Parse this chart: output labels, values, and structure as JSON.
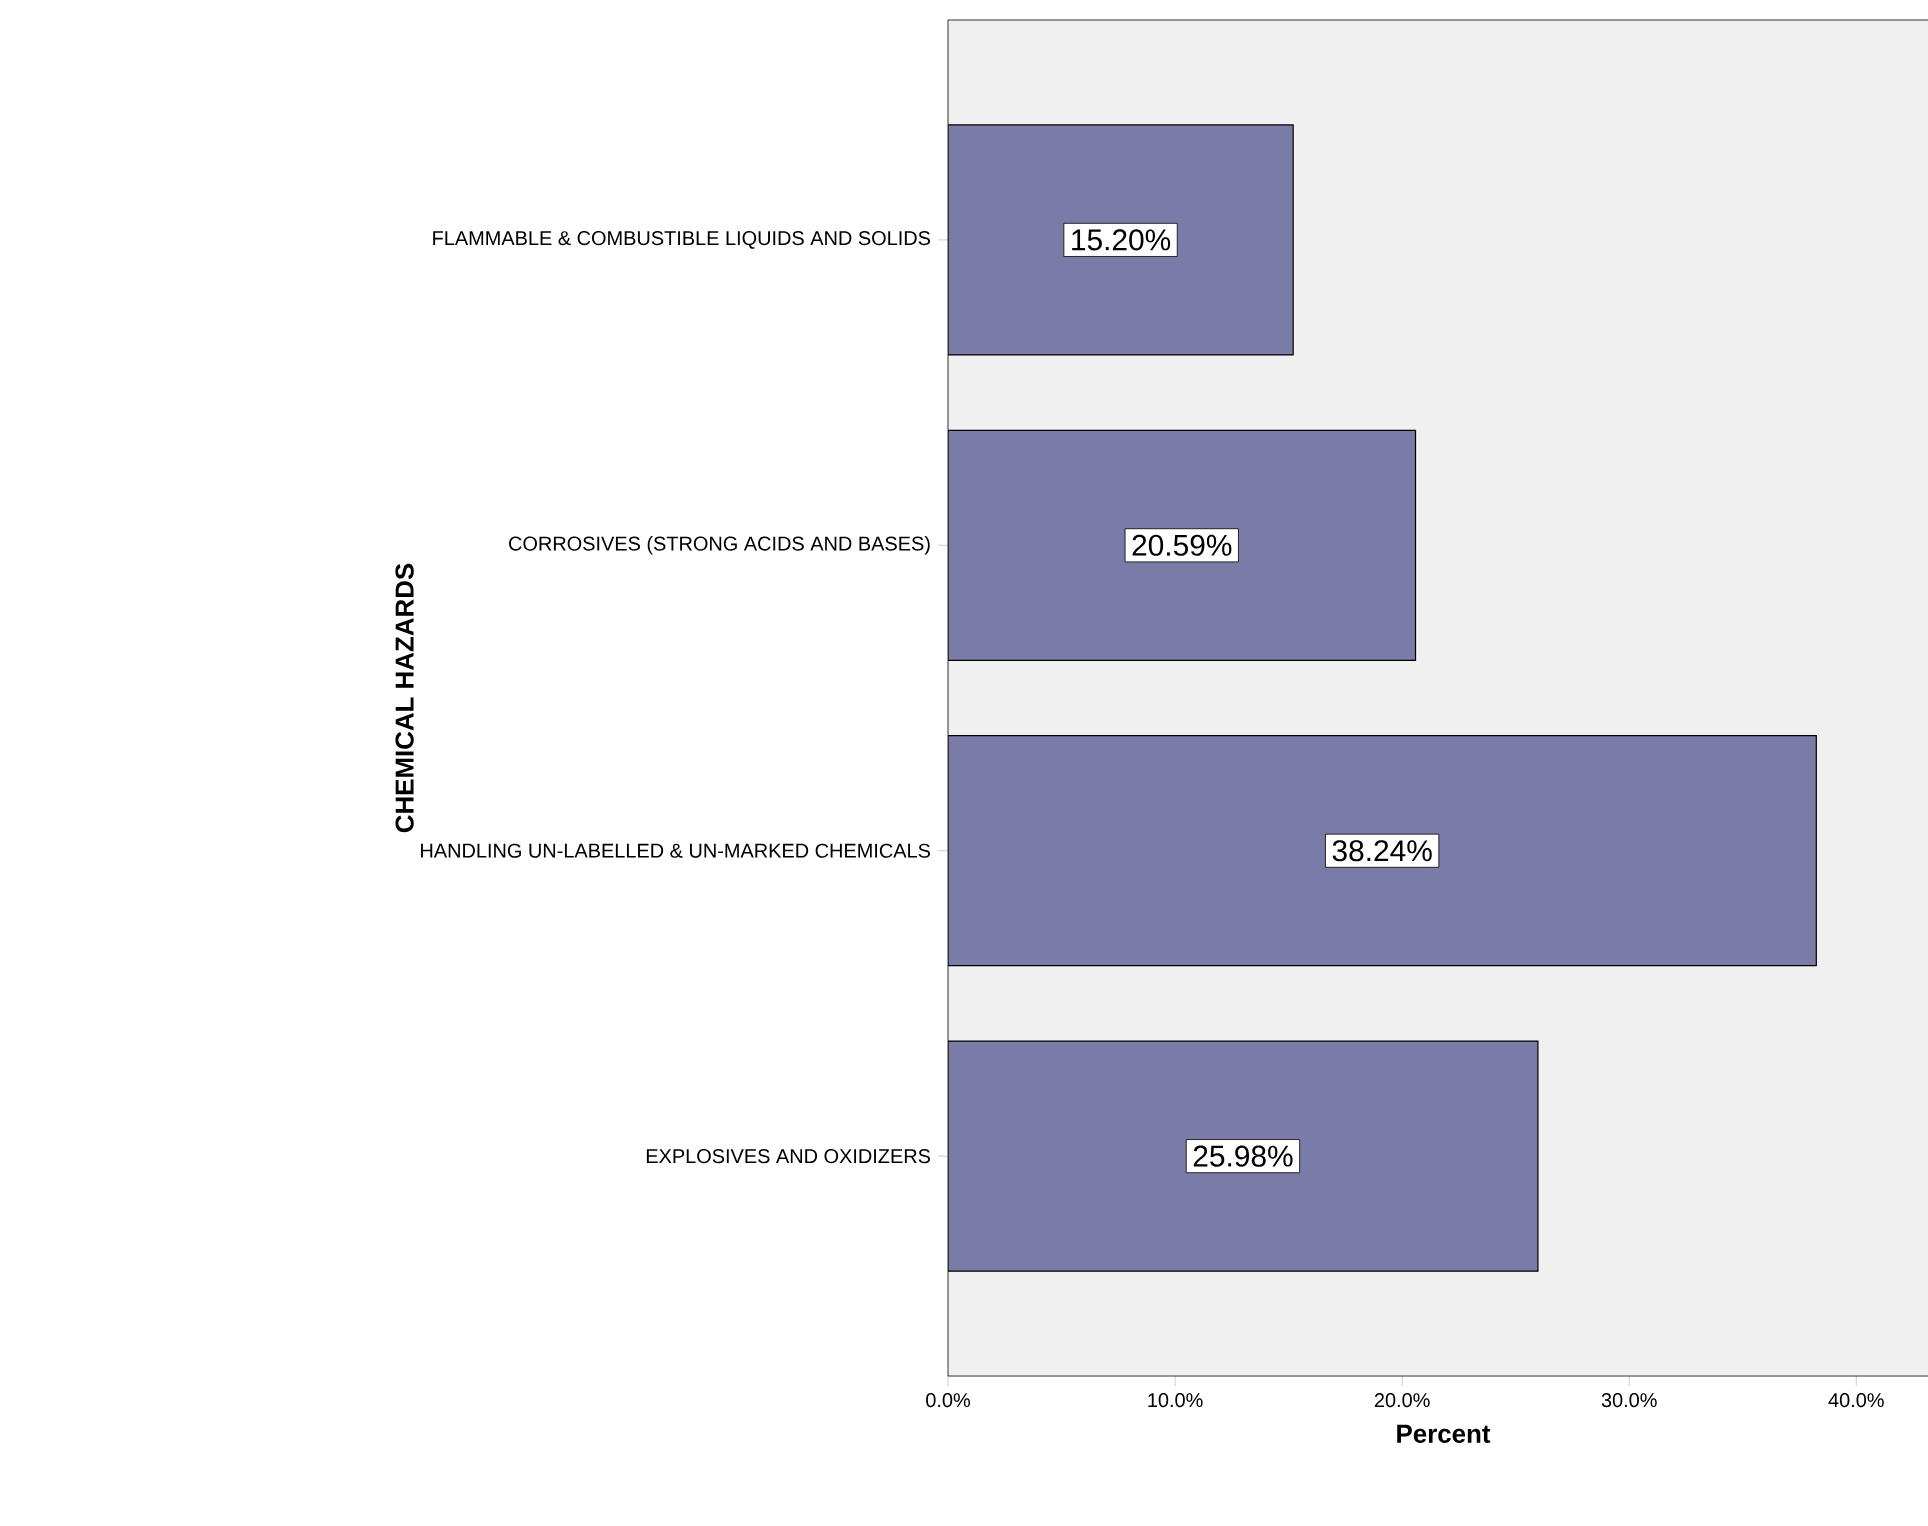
{
  "chart_data": {
    "type": "bar",
    "orientation": "horizontal",
    "ylabel": "CHEMICAL HAZARDS",
    "xlabel": "Percent",
    "categories": [
      "FLAMMABLE & COMBUSTIBLE LIQUIDS AND SOLIDS",
      "CORROSIVES (STRONG ACIDS AND BASES)",
      "HANDLING UN-LABELLED & UN-MARKED CHEMICALS",
      "EXPLOSIVES AND OXIDIZERS"
    ],
    "values": [
      15.2,
      20.59,
      38.24,
      25.98
    ],
    "value_labels": [
      "15.20%",
      "20.59%",
      "38.24%",
      "25.98%"
    ],
    "color": "#7b7ba8",
    "xlim": [
      0,
      43.6
    ],
    "xticks": [
      {
        "value": 0,
        "label": "0.0%"
      },
      {
        "value": 10,
        "label": "10.0%"
      },
      {
        "value": 20,
        "label": "20.0%"
      },
      {
        "value": 30,
        "label": "30.0%"
      },
      {
        "value": 40,
        "label": "40.0%"
      }
    ],
    "grid": false
  }
}
